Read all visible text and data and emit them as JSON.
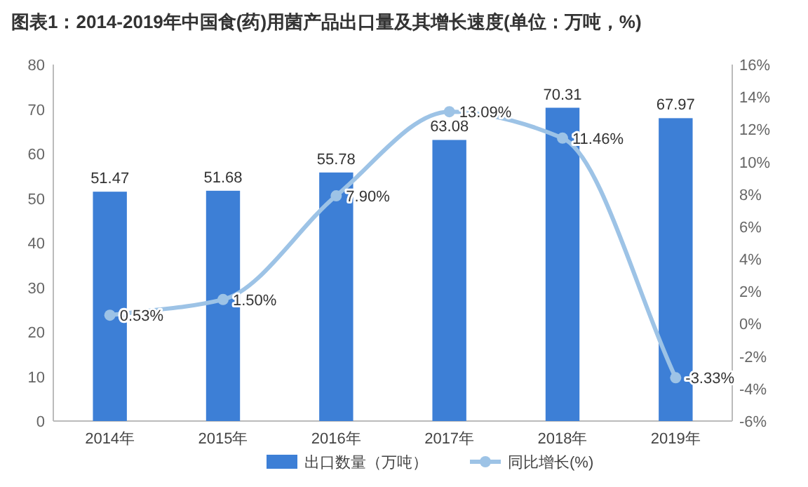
{
  "chart_data": {
    "type": "bar",
    "title": "图表1：2014-2019年中国食(药)用菌产品出口量及其增长速度(单位：万吨，%)",
    "categories": [
      "2014年",
      "2015年",
      "2016年",
      "2017年",
      "2018年",
      "2019年"
    ],
    "series": [
      {
        "name": "出口数量（万吨）",
        "color": "#3d7fd6",
        "values": [
          51.47,
          51.68,
          55.78,
          63.08,
          70.31,
          67.97
        ],
        "value_labels": [
          "51.47",
          "51.68",
          "55.78",
          "63.08",
          "70.31",
          "67.97"
        ]
      },
      {
        "name": "同比增长(%)",
        "type": "line",
        "axis": "y2",
        "color": "#9dc3e6",
        "marker": "circle",
        "values": [
          0.53,
          1.5,
          7.9,
          13.09,
          11.46,
          -3.33
        ],
        "value_labels": [
          "0.53%",
          "1.50%",
          "7.90%",
          "13.09%",
          "11.46%",
          "-3.33%"
        ]
      }
    ],
    "ylim": [
      0,
      80
    ],
    "yticks": [
      0,
      10,
      20,
      30,
      40,
      50,
      60,
      70,
      80
    ],
    "y2lim": [
      -6,
      16
    ],
    "y2ticks": [
      {
        "value": -6,
        "label": "-6%"
      },
      {
        "value": -4,
        "label": "-4%"
      },
      {
        "value": -2,
        "label": "-2%"
      },
      {
        "value": 0,
        "label": "0%"
      },
      {
        "value": 2,
        "label": "2%"
      },
      {
        "value": 4,
        "label": "4%"
      },
      {
        "value": 6,
        "label": "6%"
      },
      {
        "value": 8,
        "label": "8%"
      },
      {
        "value": 10,
        "label": "10%"
      },
      {
        "value": 12,
        "label": "12%"
      },
      {
        "value": 14,
        "label": "14%"
      },
      {
        "value": 16,
        "label": "16%"
      }
    ],
    "grid": false,
    "legend": "bottom"
  }
}
